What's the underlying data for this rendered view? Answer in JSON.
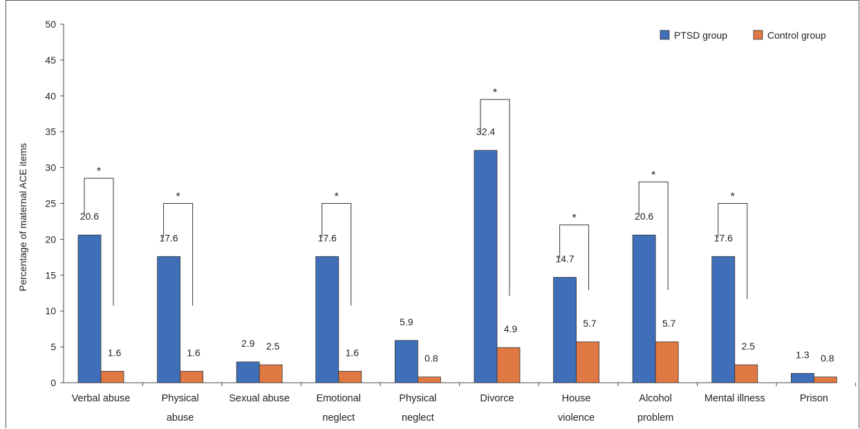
{
  "chart_data": {
    "type": "bar",
    "title": "",
    "ylabel": "Percentage of maternal ACE items",
    "ylim": [
      0,
      50
    ],
    "yticks": [
      0,
      5,
      10,
      15,
      20,
      25,
      30,
      35,
      40,
      45,
      50
    ],
    "categories": [
      [
        "Verbal abuse"
      ],
      [
        "Physical",
        "abuse"
      ],
      [
        "Sexual abuse"
      ],
      [
        "Emotional",
        "neglect"
      ],
      [
        "Physical",
        "neglect"
      ],
      [
        "Divorce"
      ],
      [
        "House",
        "violence"
      ],
      [
        "Alcohol",
        "problem"
      ],
      [
        "Mental illness"
      ],
      [
        "Prison"
      ]
    ],
    "series": [
      {
        "name": "PTSD group",
        "color": "#3f6fb8",
        "values": [
          20.6,
          17.6,
          2.9,
          17.6,
          5.9,
          32.4,
          14.7,
          20.6,
          17.6,
          1.3
        ]
      },
      {
        "name": "Control group",
        "color": "#e07843",
        "values": [
          1.6,
          1.6,
          2.5,
          1.6,
          0.8,
          4.9,
          5.7,
          5.7,
          2.5,
          0.8
        ]
      }
    ],
    "data_labels": [
      [
        "20.6",
        "17.6",
        "2.9",
        "17.6",
        "5.9",
        "32.4",
        "14.7",
        "20.6",
        "17.6",
        "1.3"
      ],
      [
        "1.6",
        "1.6",
        "2.5",
        "1.6",
        "0.8",
        "4.9",
        "5.7",
        "5.7",
        "2.5",
        "0.8"
      ]
    ],
    "significance": [
      {
        "category_index": 0,
        "label": "*",
        "bracket_top": 28.5
      },
      {
        "category_index": 1,
        "label": "*",
        "bracket_top": 25
      },
      {
        "category_index": 3,
        "label": "*",
        "bracket_top": 25
      },
      {
        "category_index": 5,
        "label": "*",
        "bracket_top": 39.5
      },
      {
        "category_index": 6,
        "label": "*",
        "bracket_top": 22
      },
      {
        "category_index": 7,
        "label": "*",
        "bracket_top": 28
      },
      {
        "category_index": 8,
        "label": "*",
        "bracket_top": 25
      }
    ],
    "legend_position": "top-right",
    "grid": false
  }
}
